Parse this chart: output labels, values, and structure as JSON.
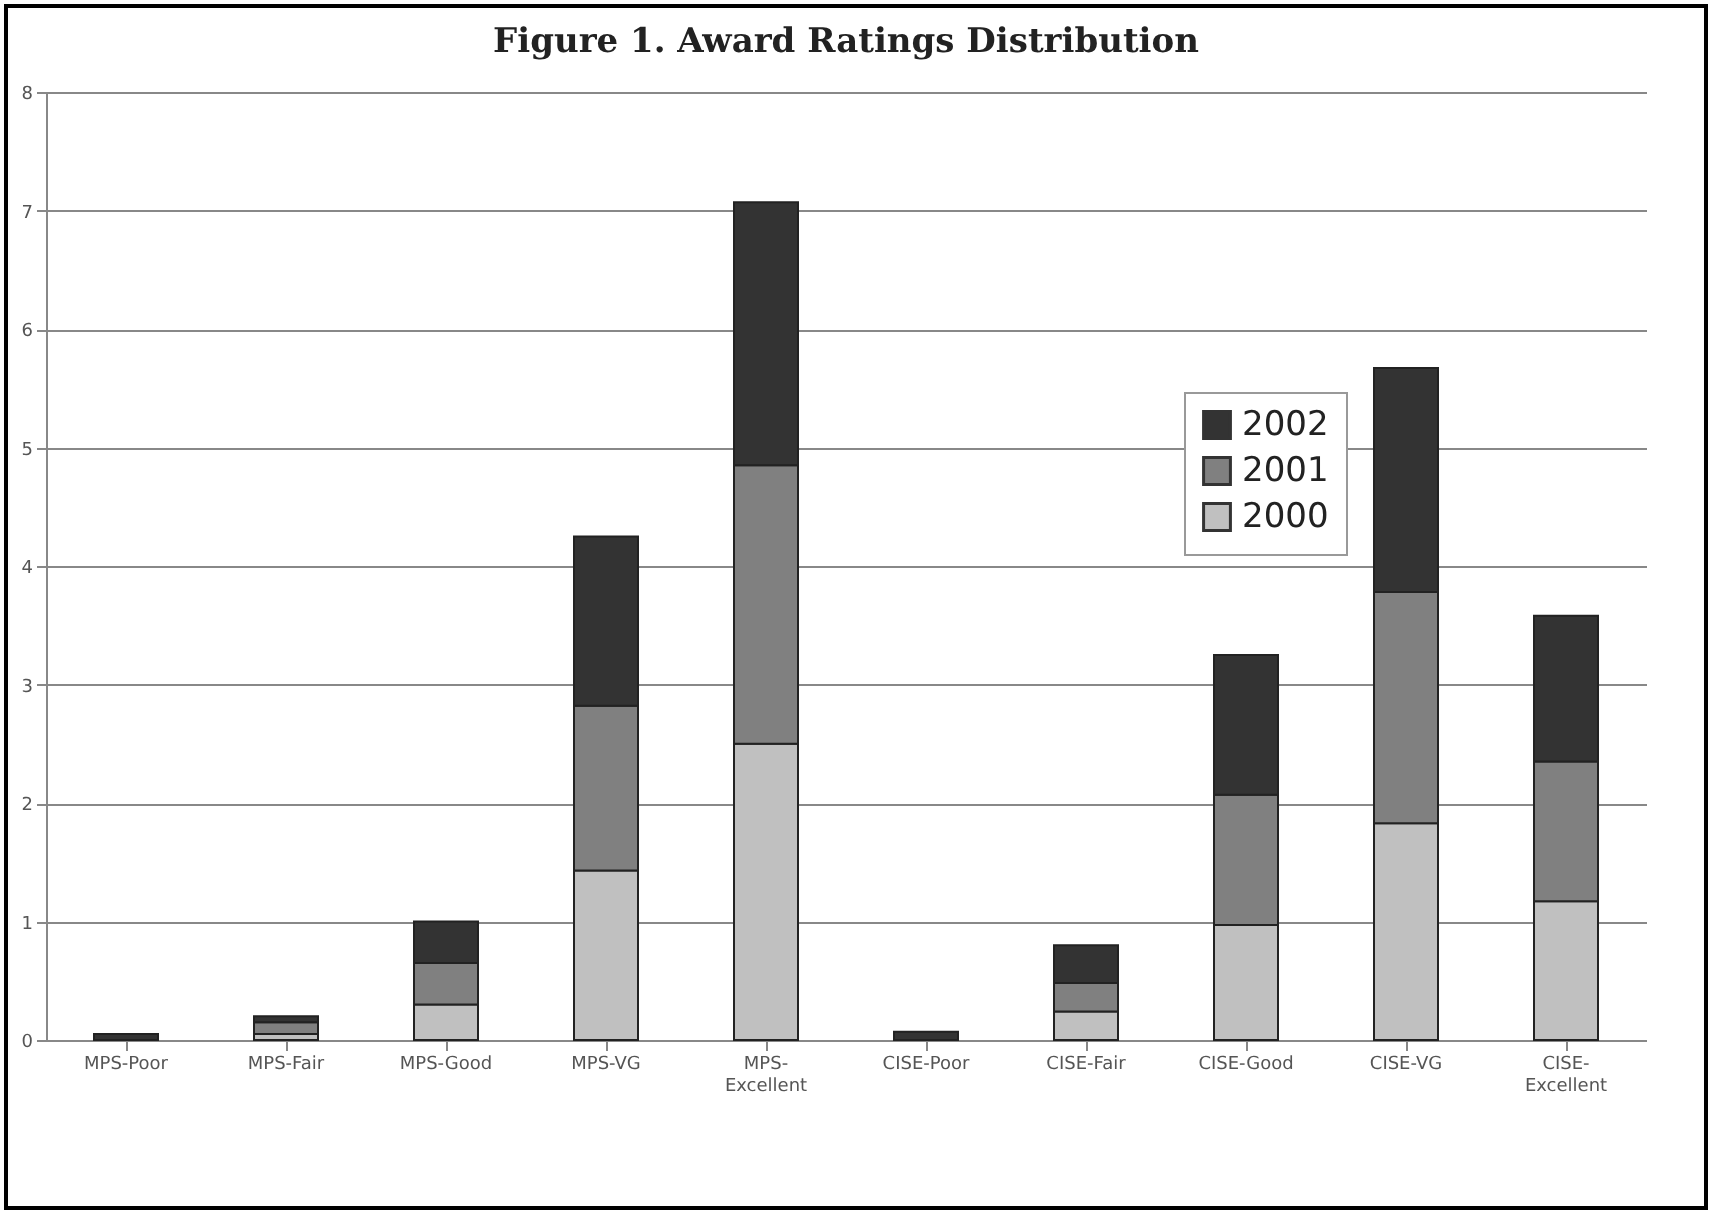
{
  "chart_data": {
    "type": "bar",
    "title": "Figure 1. Award Ratings Distribution",
    "stacked": true,
    "legend": "top right",
    "grid": "y",
    "categories": [
      "MPS-Poor",
      "MPS-Fair",
      "MPS-Good",
      "MPS-VG",
      "MPS-Excellent",
      "CISE-Poor",
      "CISE-Fair",
      "CISE-Good",
      "CISE-VG",
      "CISE-Excellent"
    ],
    "series": [
      {
        "name": "2000",
        "color": "#c0c0c0",
        "values": [
          0,
          0.05,
          0.3,
          1.43,
          2.5,
          0,
          0.24,
          0.97,
          1.83,
          1.17
        ]
      },
      {
        "name": "2001",
        "color": "#808080",
        "values": [
          0,
          0.1,
          0.35,
          1.39,
          2.35,
          0,
          0.24,
          1.1,
          1.95,
          1.18
        ]
      },
      {
        "name": "2002",
        "color": "#333333",
        "values": [
          0.05,
          0.05,
          0.35,
          1.43,
          2.22,
          0.07,
          0.32,
          1.18,
          1.89,
          1.23
        ]
      }
    ],
    "ylim": [
      0,
      8
    ],
    "yticks": [
      0,
      1,
      2,
      3,
      4,
      5,
      6,
      7,
      8
    ]
  }
}
